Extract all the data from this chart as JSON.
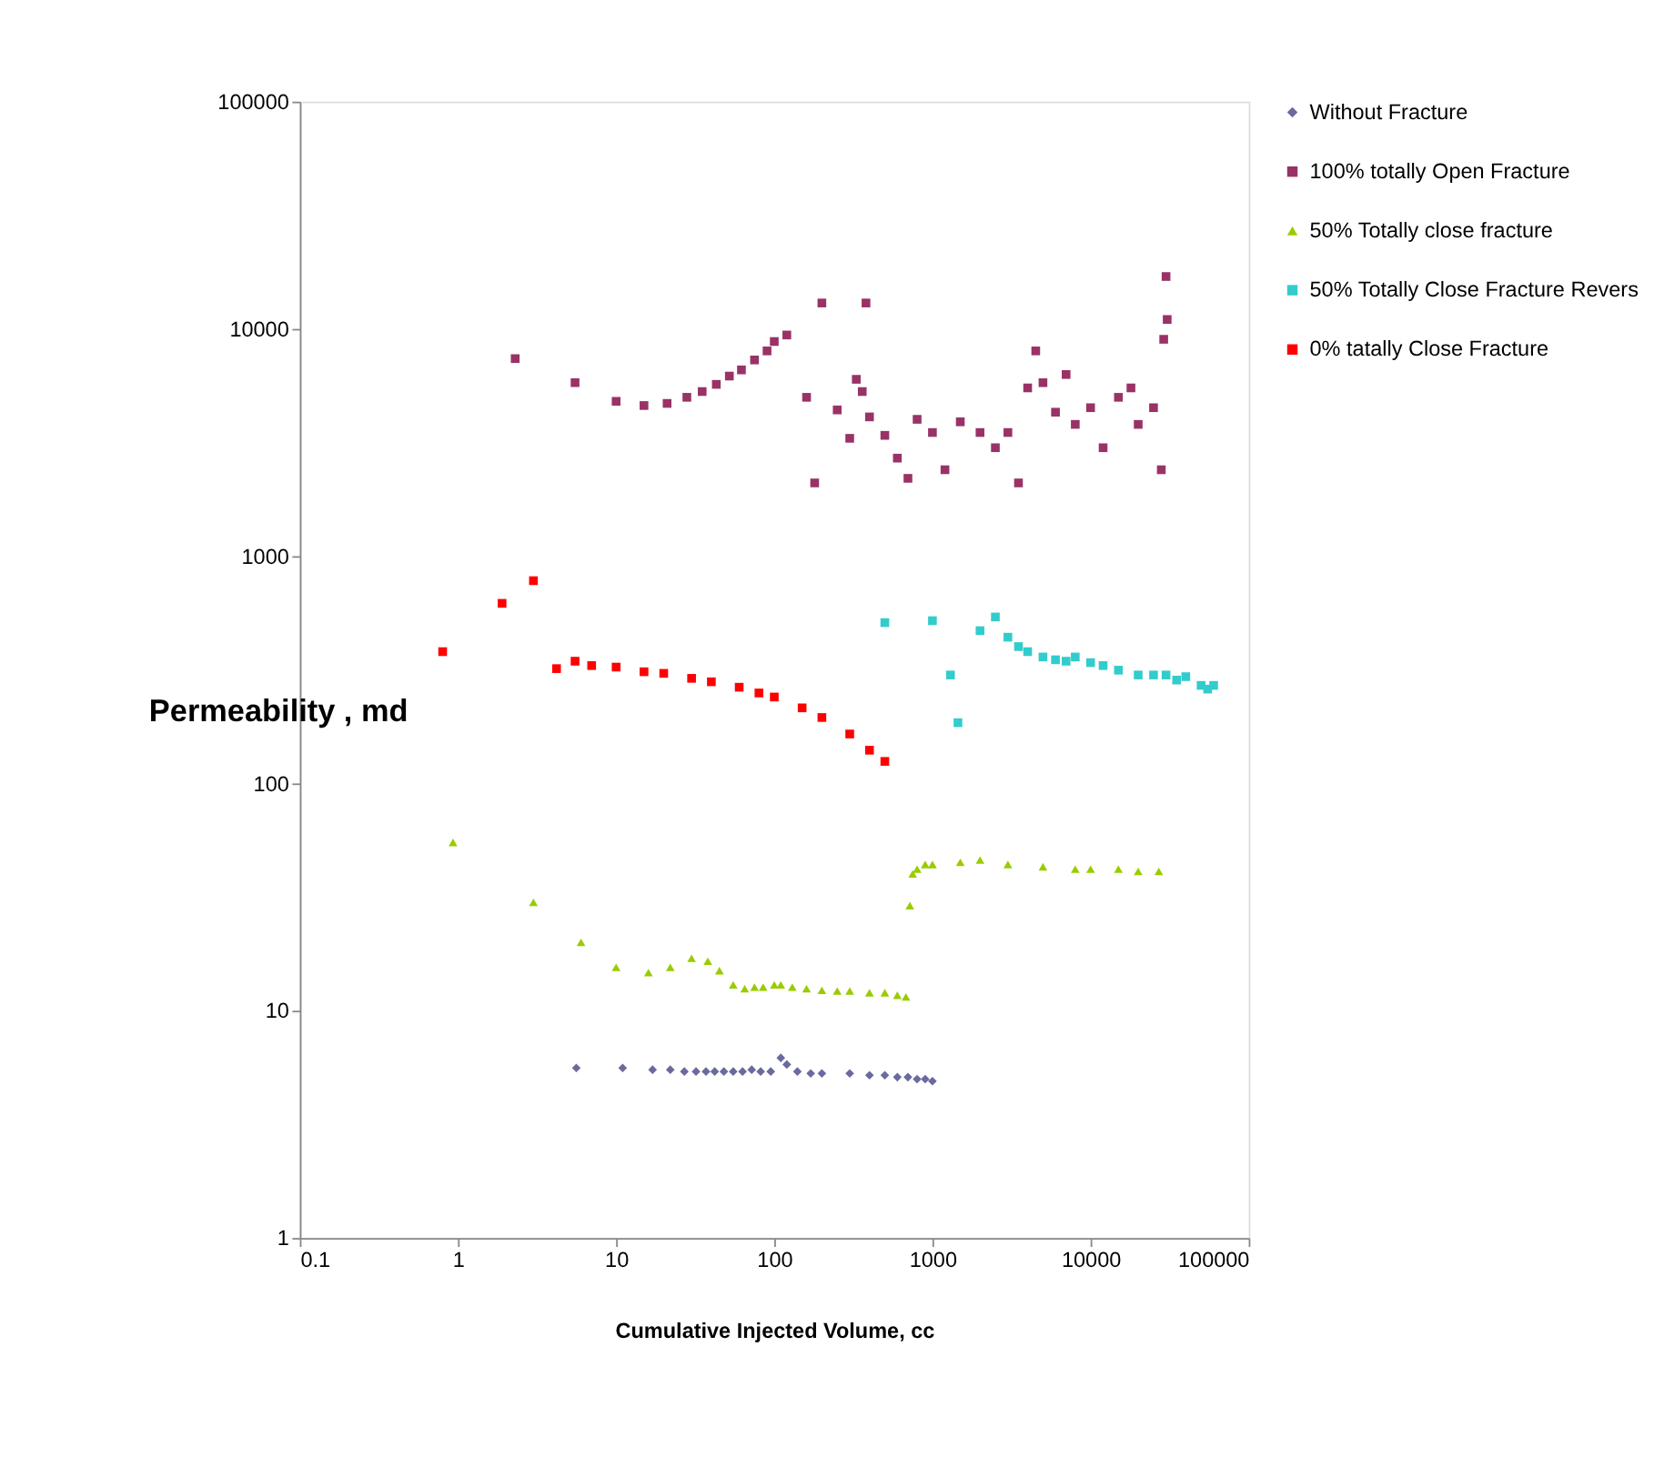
{
  "chart_data": {
    "type": "scatter",
    "xlabel": "Cumulative Injected Volume, cc",
    "ylabel": "Permeability , md",
    "log": "xy",
    "xlim": [
      0.1,
      100000
    ],
    "ylim": [
      1,
      100000
    ],
    "xticks": [
      0.1,
      1,
      10,
      100,
      1000,
      10000,
      100000
    ],
    "yticks": [
      1,
      10,
      100,
      1000,
      10000,
      100000
    ],
    "grid": false,
    "legend": "right",
    "series": [
      {
        "name": "Without Fracture",
        "color": "#6a6a9f",
        "marker": "diamond",
        "x": [
          5.6,
          11,
          17,
          22,
          27,
          32,
          37,
          42,
          48,
          55,
          63,
          72,
          82,
          95,
          110,
          120,
          140,
          170,
          200,
          300,
          400,
          500,
          600,
          700,
          800,
          900,
          1000
        ],
        "values": [
          5.6,
          5.6,
          5.5,
          5.5,
          5.4,
          5.4,
          5.4,
          5.4,
          5.4,
          5.4,
          5.4,
          5.5,
          5.4,
          5.4,
          6.2,
          5.8,
          5.4,
          5.3,
          5.3,
          5.3,
          5.2,
          5.2,
          5.1,
          5.1,
          5.0,
          5.0,
          4.9
        ]
      },
      {
        "name": "100% totally Open Fracture",
        "color": "#993366",
        "marker": "square",
        "x": [
          2.3,
          5.5,
          10,
          15,
          21,
          28,
          35,
          43,
          52,
          62,
          75,
          90,
          100,
          120,
          160,
          180,
          200,
          250,
          300,
          330,
          360,
          380,
          400,
          500,
          600,
          700,
          800,
          1000,
          1200,
          1500,
          2000,
          2500,
          3000,
          3500,
          4000,
          4500,
          5000,
          6000,
          7000,
          8000,
          10000,
          12000,
          15000,
          18000,
          20000,
          25000,
          28000,
          29000,
          30000,
          30500
        ],
        "values": [
          7400,
          5800,
          4800,
          4600,
          4700,
          5000,
          5300,
          5700,
          6200,
          6600,
          7300,
          8000,
          8800,
          9400,
          5000,
          2100,
          13000,
          4400,
          3300,
          6000,
          5300,
          13000,
          4100,
          3400,
          2700,
          2200,
          4000,
          3500,
          2400,
          3900,
          3500,
          3000,
          3500,
          2100,
          5500,
          8000,
          5800,
          4300,
          6300,
          3800,
          4500,
          3000,
          5000,
          5500,
          3800,
          4500,
          2400,
          9000,
          17000,
          11000
        ]
      },
      {
        "name": "50% Totally close fracture",
        "color": "#99cc00",
        "marker": "triangle",
        "x": [
          0.93,
          3,
          6,
          10,
          16,
          22,
          30,
          38,
          45,
          55,
          65,
          75,
          85,
          100,
          110,
          130,
          160,
          200,
          250,
          300,
          400,
          500,
          600,
          680,
          720,
          750,
          800,
          900,
          1000,
          1500,
          2000,
          3000,
          5000,
          8000,
          10000,
          15000,
          20000,
          27000
        ],
        "values": [
          55,
          30,
          20,
          15.5,
          14.7,
          15.5,
          17,
          16.5,
          15,
          13,
          12.5,
          12.7,
          12.7,
          13,
          13,
          12.7,
          12.5,
          12.3,
          12.2,
          12.2,
          12,
          12,
          11.7,
          11.5,
          29,
          40,
          42,
          44,
          44,
          45,
          46,
          44,
          43,
          42,
          42,
          42,
          41,
          41
        ]
      },
      {
        "name": "50% Totally Close  Fracture Revers",
        "color": "#33cccc",
        "marker": "square",
        "x": [
          500,
          1000,
          1300,
          1450,
          2000,
          2500,
          3000,
          3500,
          4000,
          5000,
          6000,
          7000,
          8000,
          10000,
          12000,
          15000,
          20000,
          25000,
          30000,
          35000,
          40000,
          50000,
          55000,
          60000
        ],
        "values": [
          510,
          520,
          300,
          185,
          470,
          540,
          440,
          400,
          380,
          360,
          350,
          345,
          360,
          340,
          330,
          315,
          300,
          300,
          300,
          285,
          295,
          270,
          260,
          270
        ]
      },
      {
        "name": "0% tatally Close Fracture",
        "color": "#ff0000",
        "marker": "square",
        "x": [
          0.8,
          1.9,
          3,
          4.2,
          5.5,
          7,
          10,
          15,
          20,
          30,
          40,
          60,
          80,
          100,
          150,
          200,
          300,
          400,
          500
        ],
        "values": [
          380,
          620,
          780,
          320,
          345,
          330,
          325,
          310,
          305,
          290,
          280,
          265,
          250,
          240,
          215,
          195,
          165,
          140,
          125
        ]
      }
    ]
  }
}
